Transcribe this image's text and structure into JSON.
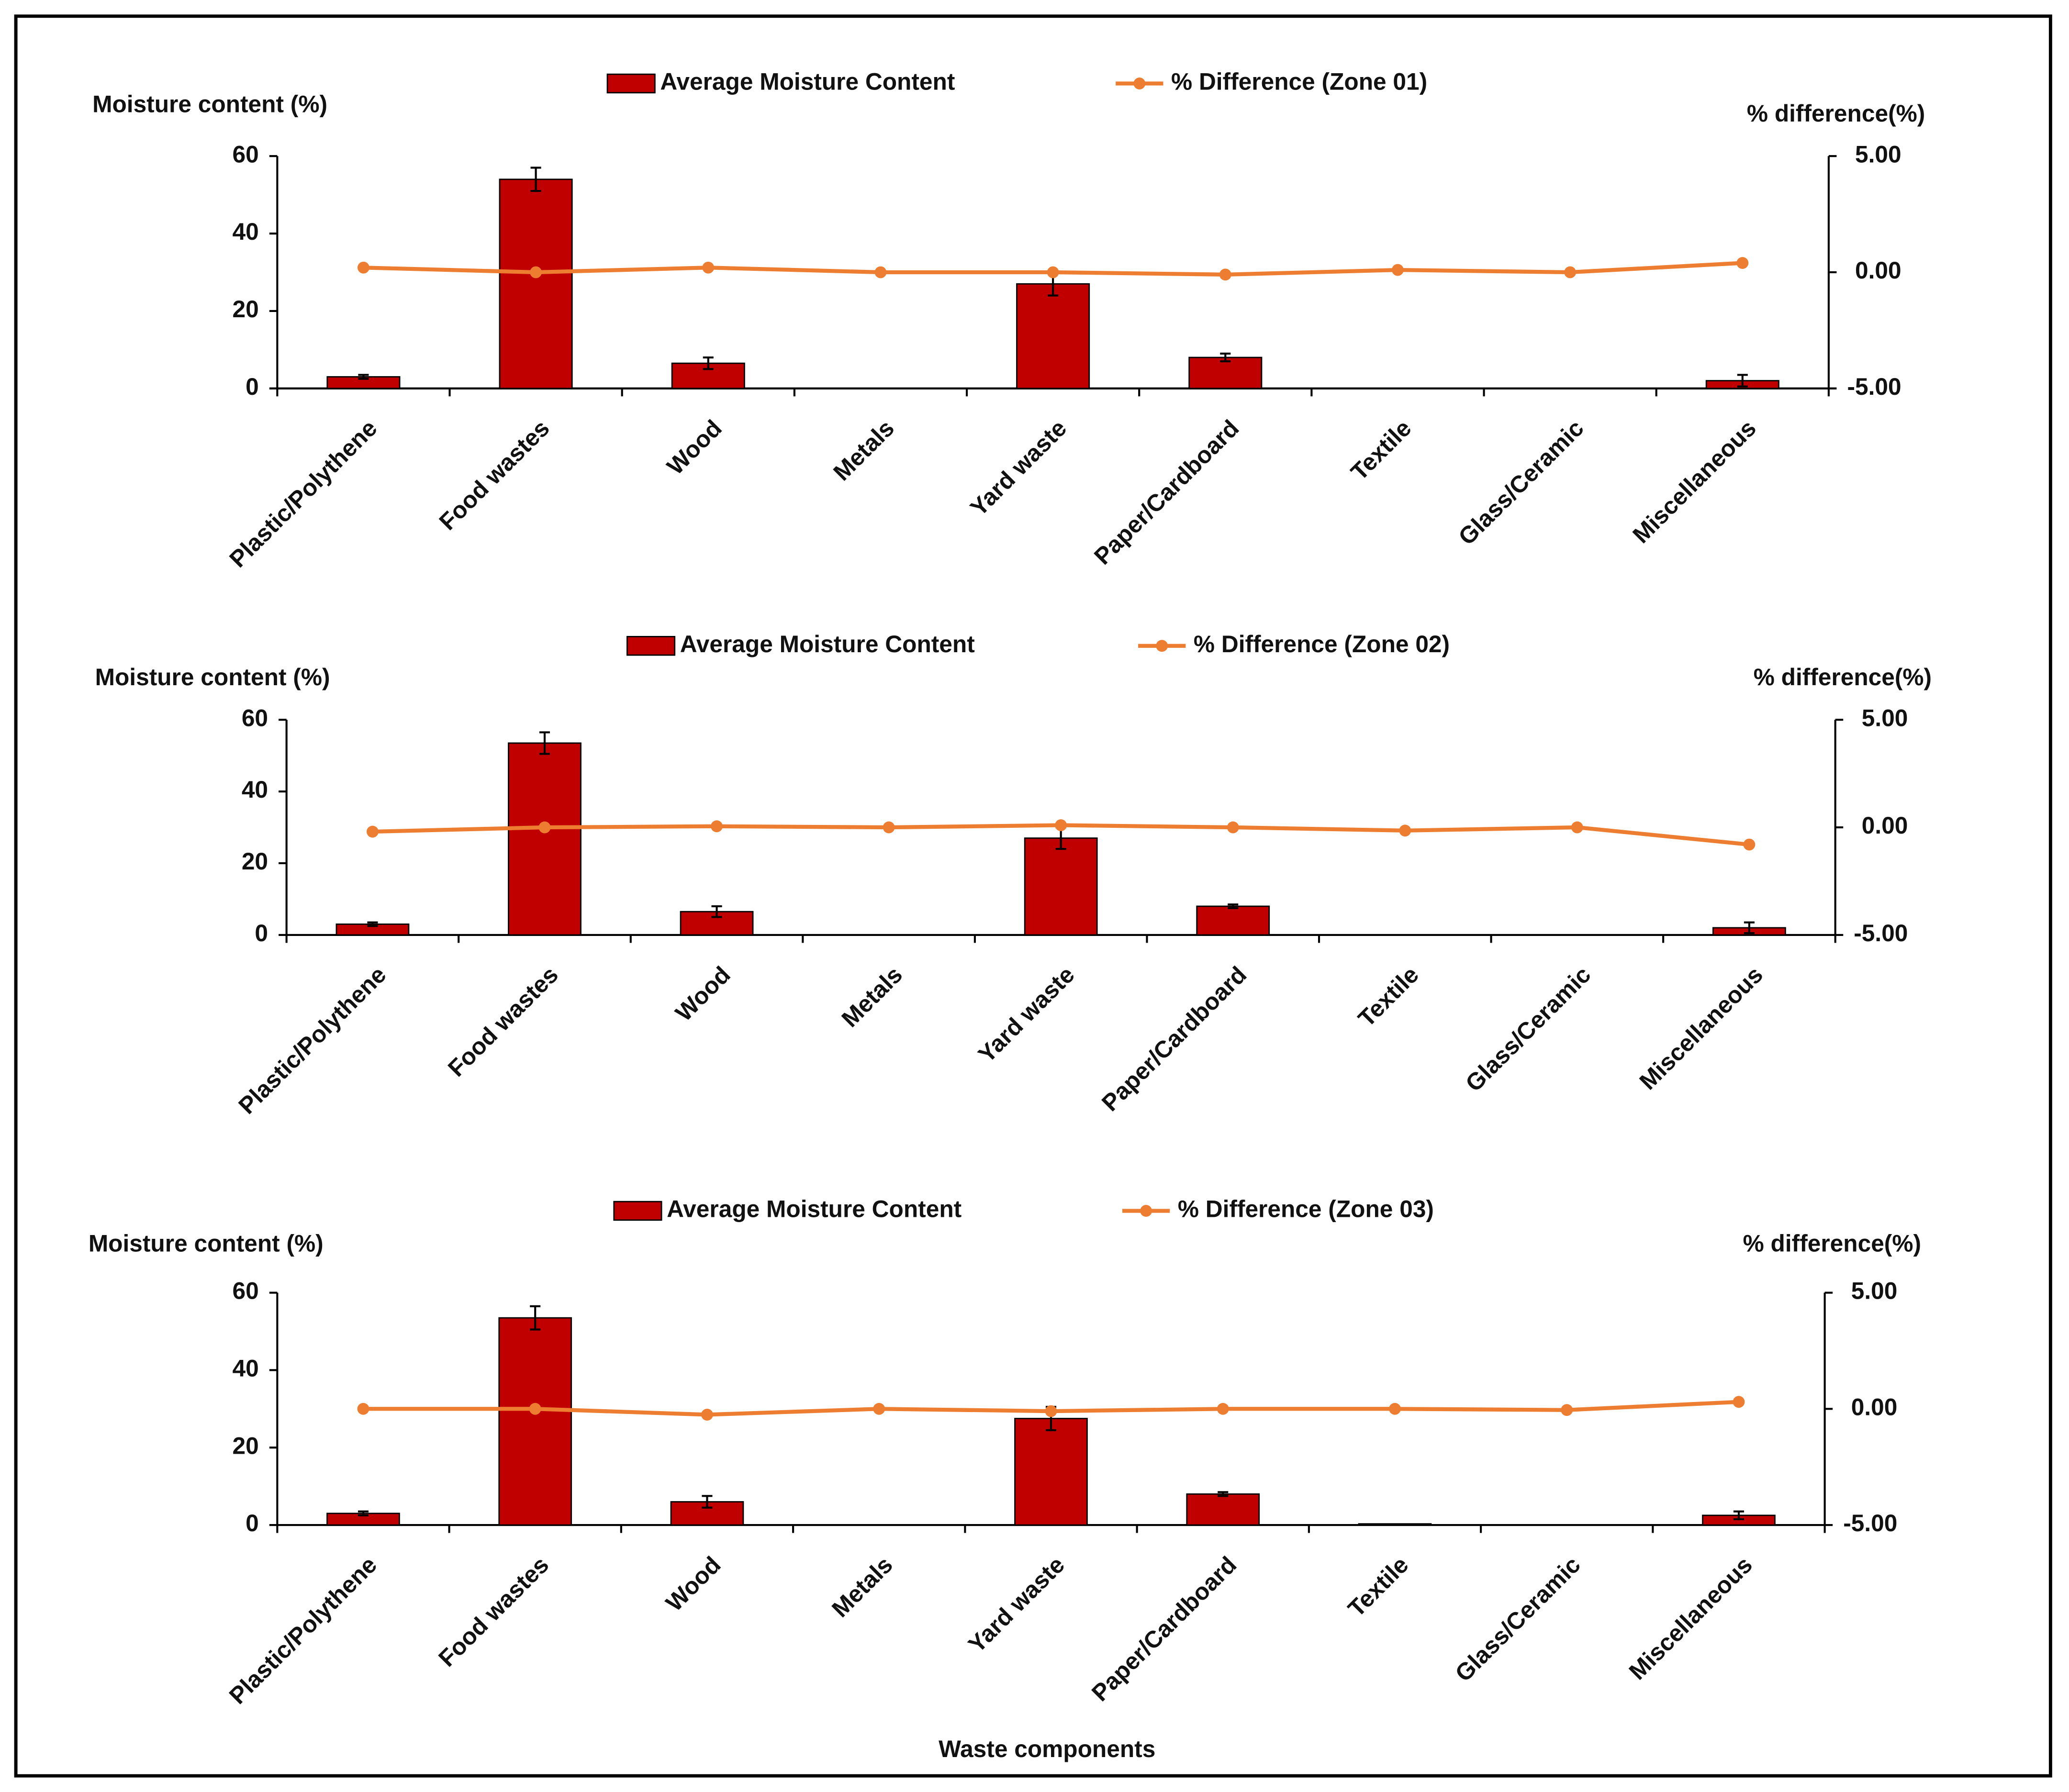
{
  "chart_data": [
    {
      "type": "bar-line",
      "categories": [
        "Plastic/Polythene",
        "Food wastes",
        "Wood",
        "Metals",
        "Yard waste",
        "Paper/Cardboard",
        "Textile",
        "Glass/Ceramic",
        "Miscellaneous"
      ],
      "ylabel": "Moisture content  (%)",
      "y2label": "% difference(%)",
      "ylim": [
        0,
        60
      ],
      "yticks": [
        0,
        20,
        40,
        60
      ],
      "y2lim": [
        -5,
        5
      ],
      "y2ticks": [
        {
          "value": -5,
          "label": "-5.00"
        },
        {
          "value": 0,
          "label": "0.00"
        },
        {
          "value": 5,
          "label": "5.00"
        }
      ],
      "series": [
        {
          "name": "Average Moisture Content",
          "color": "#c00000",
          "values": [
            3,
            54,
            6.5,
            0,
            27,
            8,
            0,
            0,
            2
          ],
          "errors": [
            0.5,
            3,
            1.5,
            0,
            3,
            1,
            0,
            0,
            1.5
          ]
        },
        {
          "name": "% Difference (Zone 01)",
          "color": "#ed7d31",
          "axis": "y2",
          "values": [
            0.2,
            0.0,
            0.2,
            0.0,
            0.0,
            -0.1,
            0.1,
            0.0,
            0.4
          ]
        }
      ]
    },
    {
      "type": "bar-line",
      "categories": [
        "Plastic/Polythene",
        "Food wastes",
        "Wood",
        "Metals",
        "Yard waste",
        "Paper/Cardboard",
        "Textile",
        "Glass/Ceramic",
        "Miscellaneous"
      ],
      "ylabel": "Moisture content  (%)",
      "y2label": "% difference(%)",
      "ylim": [
        0,
        60
      ],
      "yticks": [
        0,
        20,
        40,
        60
      ],
      "y2lim": [
        -5,
        5
      ],
      "y2ticks": [
        {
          "value": -5,
          "label": "-5.00"
        },
        {
          "value": 0,
          "label": "0.00"
        },
        {
          "value": 5,
          "label": "5.00"
        }
      ],
      "series": [
        {
          "name": "Average Moisture Content",
          "color": "#c00000",
          "values": [
            3,
            53.5,
            6.5,
            0,
            27,
            8,
            0,
            0,
            2
          ],
          "errors": [
            0.5,
            3,
            1.5,
            0,
            3,
            0.5,
            0,
            0,
            1.5
          ]
        },
        {
          "name": "% Difference (Zone 02)",
          "color": "#ed7d31",
          "axis": "y2",
          "values": [
            -0.2,
            0.0,
            0.05,
            0.0,
            0.1,
            0.0,
            -0.15,
            0.0,
            -0.8
          ]
        }
      ]
    },
    {
      "type": "bar-line",
      "categories": [
        "Plastic/Polythene",
        "Food wastes",
        "Wood",
        "Metals",
        "Yard waste",
        "Paper/Cardboard",
        "Textile",
        "Glass/Ceramic",
        "Miscellaneous"
      ],
      "ylabel": "Moisture content  (%)",
      "y2label": "% difference(%)",
      "xlabel": "Waste components",
      "ylim": [
        0,
        60
      ],
      "yticks": [
        0,
        20,
        40,
        60
      ],
      "y2lim": [
        -5,
        5
      ],
      "y2ticks": [
        {
          "value": -5,
          "label": "-5.00"
        },
        {
          "value": 0,
          "label": "0.00"
        },
        {
          "value": 5,
          "label": "5.00"
        }
      ],
      "series": [
        {
          "name": "Average Moisture Content",
          "color": "#c00000",
          "values": [
            3,
            53.5,
            6,
            0,
            27.5,
            8,
            0.3,
            0,
            2.5
          ],
          "errors": [
            0.5,
            3,
            1.5,
            0,
            3,
            0.5,
            0,
            0,
            1
          ]
        },
        {
          "name": "% Difference (Zone 03)",
          "color": "#ed7d31",
          "axis": "y2",
          "values": [
            0.0,
            0.0,
            -0.25,
            0.0,
            -0.1,
            0.0,
            0.0,
            -0.05,
            0.3
          ]
        }
      ]
    }
  ]
}
